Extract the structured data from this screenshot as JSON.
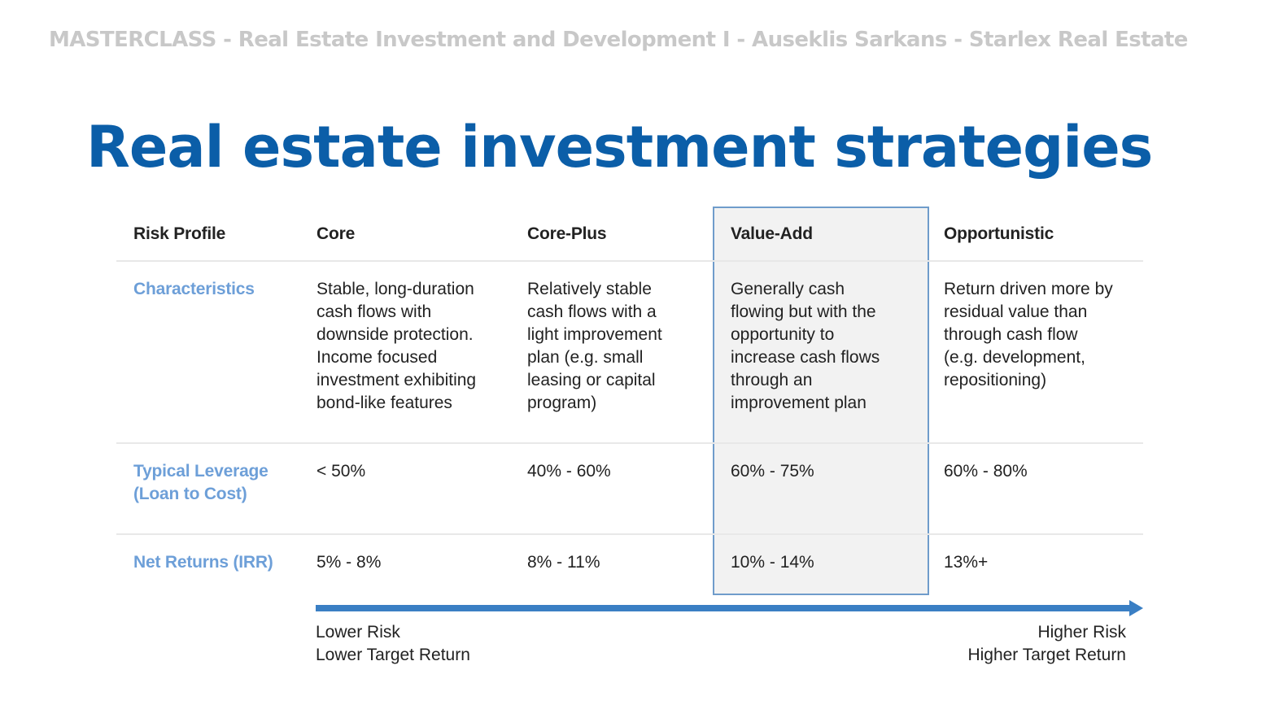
{
  "header": {
    "text": "MASTERCLASS - Real Estate Investment and Development I - Auseklis Sarkans - Starlex Real Estate"
  },
  "title": "Real estate investment strategies",
  "table": {
    "headers": [
      "Risk Profile",
      "Core",
      "Core-Plus",
      "Value-Add",
      "Opportunistic"
    ],
    "rows": [
      {
        "label": "Characteristics",
        "cells": [
          "Stable, long-duration\ncash flows with\ndownside protection.\nIncome focused\ninvestment exhibiting\nbond-like features",
          "Relatively stable\ncash flows with a\nlight improvement\nplan (e.g. small\nleasing or capital\nprogram)",
          "Generally cash\nflowing but with the\nopportunity to\nincrease cash flows\nthrough an\nimprovement plan",
          "Return driven more by\nresidual value than\nthrough cash flow\n(e.g. development,\nrepositioning)"
        ]
      },
      {
        "label": "Typical Leverage\n(Loan to Cost)",
        "cells": [
          "< 50%",
          "40% - 60%",
          "60% - 75%",
          "60% - 80%"
        ]
      },
      {
        "label": "Net Returns (IRR)",
        "cells": [
          "5% - 8%",
          "8% - 11%",
          "10% - 14%",
          "13%+"
        ]
      }
    ],
    "highlighted_column": "Value-Add"
  },
  "scale": {
    "left": [
      "Lower Risk",
      "Lower Target Return"
    ],
    "right": [
      "Higher Risk",
      "Higher Target Return"
    ]
  },
  "colors": {
    "title": "#0b5ea8",
    "row_label": "#6d9fd8",
    "arrow": "#3a7fc4",
    "highlight_border": "#6f9ccb",
    "highlight_fill": "#f2f2f2"
  }
}
